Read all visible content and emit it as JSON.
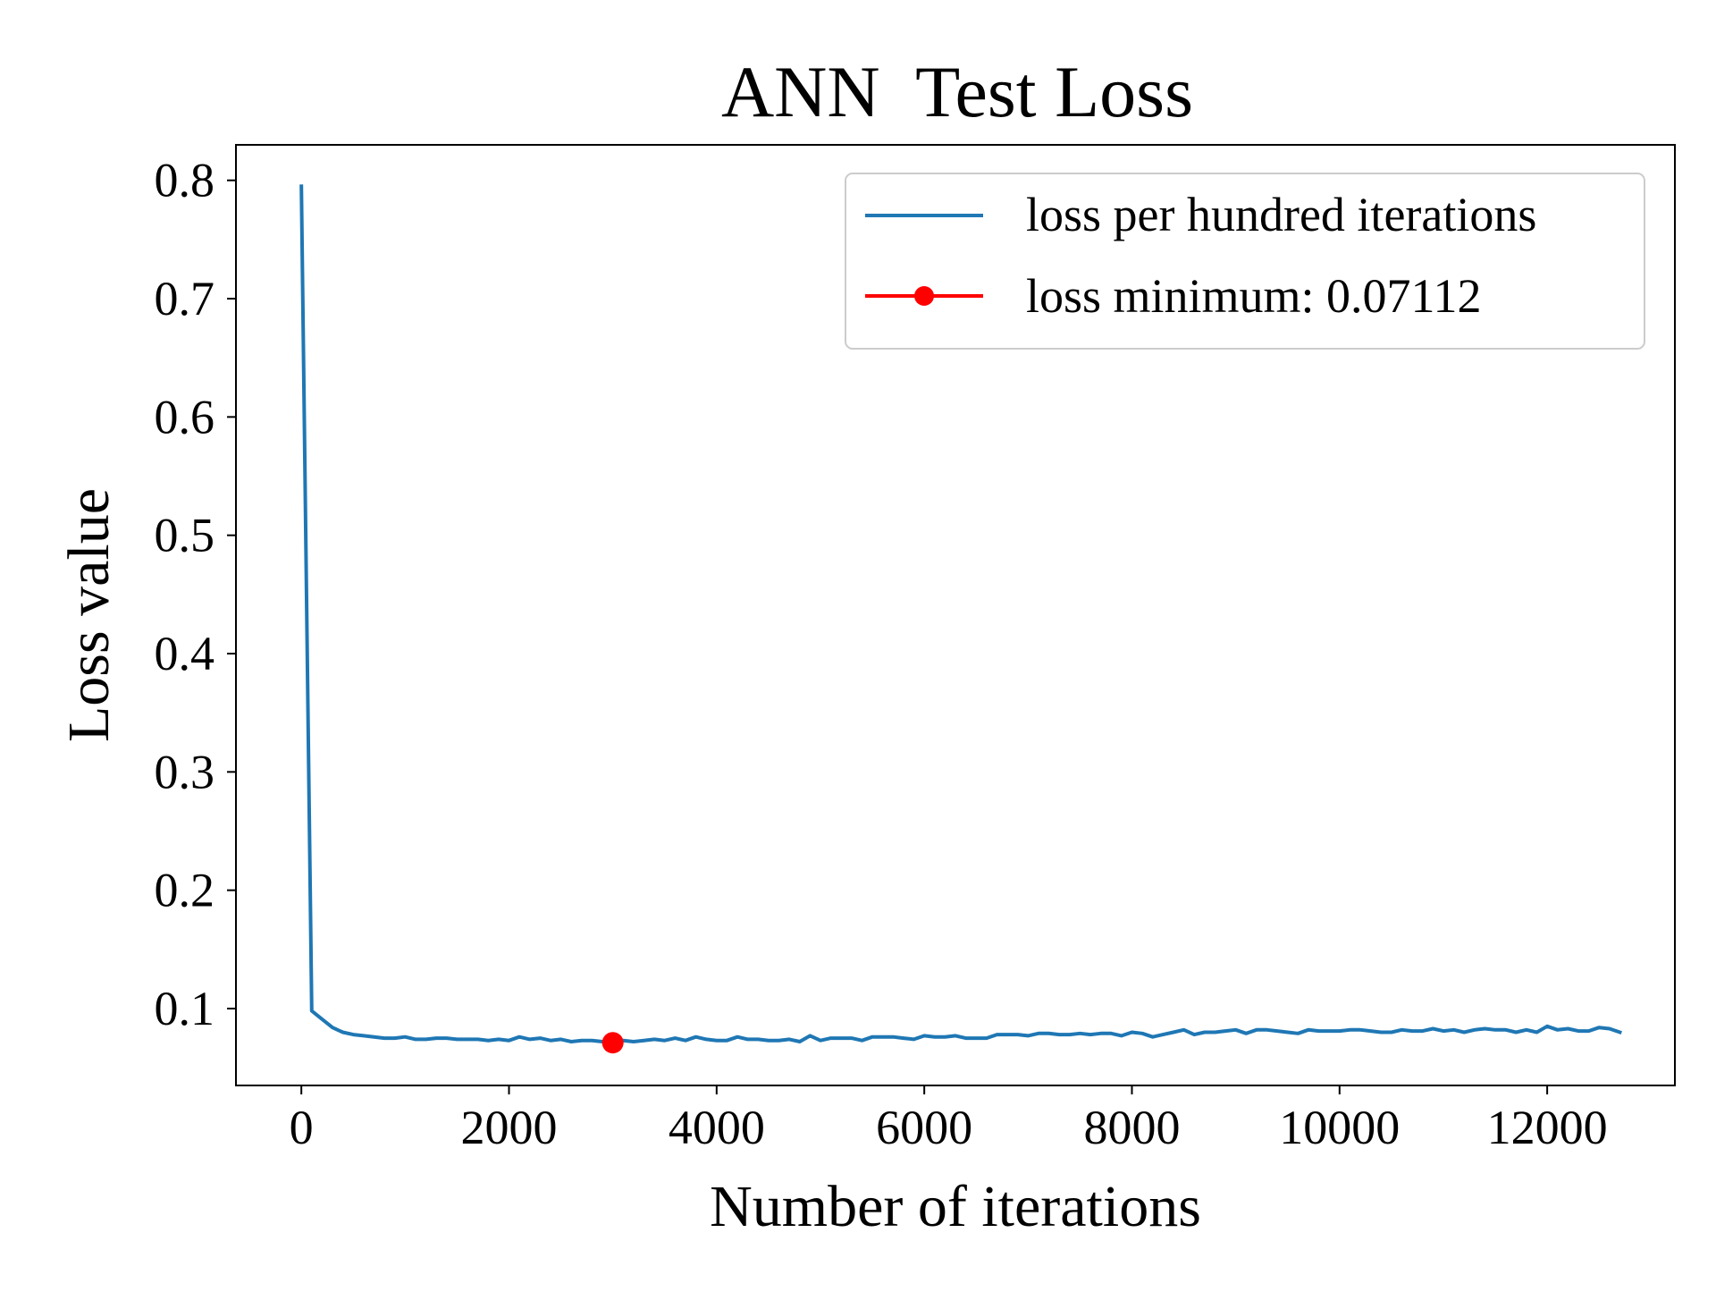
{
  "chart_data": {
    "type": "line",
    "title": "ANN  Test Loss",
    "xlabel": "Number of iterations",
    "ylabel": "Loss value",
    "xlim": [
      -630,
      13230
    ],
    "ylim": [
      0.035,
      0.83
    ],
    "xticks": [
      0,
      2000,
      4000,
      6000,
      8000,
      10000,
      12000
    ],
    "xtick_labels": [
      "0",
      "2000",
      "4000",
      "6000",
      "8000",
      "10000",
      "12000"
    ],
    "yticks": [
      0.1,
      0.2,
      0.3,
      0.4,
      0.5,
      0.6,
      0.7,
      0.8
    ],
    "ytick_labels": [
      "0.1",
      "0.2",
      "0.3",
      "0.4",
      "0.5",
      "0.6",
      "0.7",
      "0.8"
    ],
    "grid": false,
    "legend_position": "top-right",
    "colors": {
      "series": "#1f77b4",
      "minimum": "#ff0000"
    },
    "series": [
      {
        "name": "loss per hundred iterations",
        "x": [
          0,
          100,
          200,
          300,
          400,
          500,
          600,
          700,
          800,
          900,
          1000,
          1100,
          1200,
          1300,
          1400,
          1500,
          1600,
          1700,
          1800,
          1900,
          2000,
          2100,
          2200,
          2300,
          2400,
          2500,
          2600,
          2700,
          2800,
          2900,
          3000,
          3100,
          3200,
          3300,
          3400,
          3500,
          3600,
          3700,
          3800,
          3900,
          4000,
          4100,
          4200,
          4300,
          4400,
          4500,
          4600,
          4700,
          4800,
          4900,
          5000,
          5100,
          5200,
          5300,
          5400,
          5500,
          5600,
          5700,
          5800,
          5900,
          6000,
          6100,
          6200,
          6300,
          6400,
          6500,
          6600,
          6700,
          6800,
          6900,
          7000,
          7100,
          7200,
          7300,
          7400,
          7500,
          7600,
          7700,
          7800,
          7900,
          8000,
          8100,
          8200,
          8300,
          8400,
          8500,
          8600,
          8700,
          8800,
          8900,
          9000,
          9100,
          9200,
          9300,
          9400,
          9500,
          9600,
          9700,
          9800,
          9900,
          10000,
          10100,
          10200,
          10300,
          10400,
          10500,
          10600,
          10700,
          10800,
          10900,
          11000,
          11100,
          11200,
          11300,
          11400,
          11500,
          11600,
          11700,
          11800,
          11900,
          12000,
          12100,
          12200,
          12300,
          12400,
          12500,
          12600,
          12700
        ],
        "y": [
          0.795,
          0.098,
          0.091,
          0.084,
          0.08,
          0.078,
          0.077,
          0.076,
          0.075,
          0.075,
          0.076,
          0.074,
          0.074,
          0.075,
          0.075,
          0.074,
          0.074,
          0.074,
          0.073,
          0.074,
          0.073,
          0.076,
          0.074,
          0.075,
          0.073,
          0.074,
          0.072,
          0.073,
          0.073,
          0.072,
          0.0711,
          0.073,
          0.072,
          0.073,
          0.074,
          0.073,
          0.075,
          0.073,
          0.076,
          0.074,
          0.073,
          0.073,
          0.076,
          0.074,
          0.074,
          0.073,
          0.073,
          0.074,
          0.072,
          0.077,
          0.073,
          0.075,
          0.075,
          0.075,
          0.073,
          0.076,
          0.076,
          0.076,
          0.075,
          0.074,
          0.077,
          0.076,
          0.076,
          0.077,
          0.075,
          0.075,
          0.075,
          0.078,
          0.078,
          0.078,
          0.077,
          0.079,
          0.079,
          0.078,
          0.078,
          0.079,
          0.078,
          0.079,
          0.079,
          0.077,
          0.08,
          0.079,
          0.076,
          0.078,
          0.08,
          0.082,
          0.078,
          0.08,
          0.08,
          0.081,
          0.082,
          0.079,
          0.082,
          0.082,
          0.081,
          0.08,
          0.079,
          0.082,
          0.081,
          0.081,
          0.081,
          0.082,
          0.082,
          0.081,
          0.08,
          0.08,
          0.082,
          0.081,
          0.081,
          0.083,
          0.081,
          0.082,
          0.08,
          0.082,
          0.083,
          0.082,
          0.082,
          0.08,
          0.082,
          0.08,
          0.085,
          0.082,
          0.083,
          0.081,
          0.081,
          0.084,
          0.083,
          0.08
        ]
      },
      {
        "name": "loss minimum: 0.07112",
        "x": [
          3000
        ],
        "y": [
          0.07112
        ]
      }
    ]
  }
}
